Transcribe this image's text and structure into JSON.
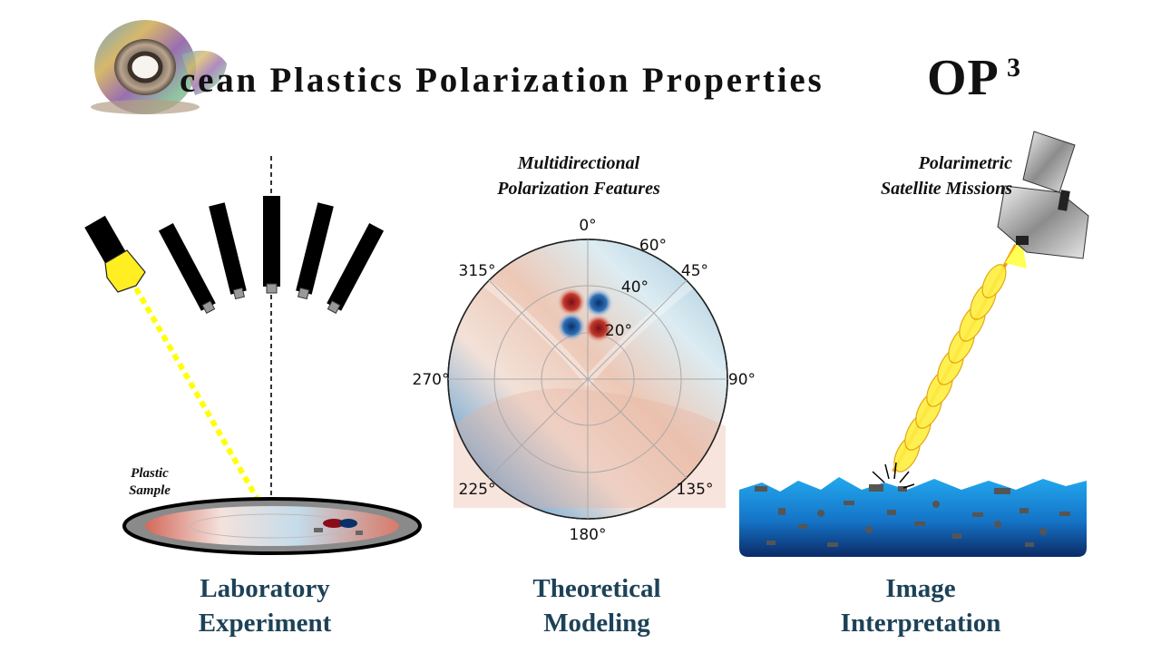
{
  "title": {
    "main": "cean Plastics Polarization Properties",
    "acronym": "OP",
    "superscript": "3"
  },
  "notes": {
    "plastic_sample_line1": "Plastic",
    "plastic_sample_line2": "Sample",
    "modeling_line1": "Multidirectional",
    "modeling_line2": "Polarization Features",
    "satellite_line1": "Polarimetric",
    "satellite_line2": "Satellite Missions"
  },
  "polar_plot": {
    "azimuth_labels": [
      "0°",
      "45°",
      "90°",
      "135°",
      "180°",
      "225°",
      "270°",
      "315°"
    ],
    "radial_labels": [
      "20°",
      "40°",
      "60°"
    ]
  },
  "captions": {
    "lab_line1": "Laboratory",
    "lab_line2": "Experiment",
    "theory_line1": "Theoretical",
    "theory_line2": "Modeling",
    "image_line1": "Image",
    "image_line2": "Interpretation"
  },
  "colors": {
    "caption": "#1d4258",
    "light_beam": "#ffff00",
    "warm": "#c0543d",
    "cool": "#2f6fb0",
    "ocean": "#1b86d4"
  }
}
